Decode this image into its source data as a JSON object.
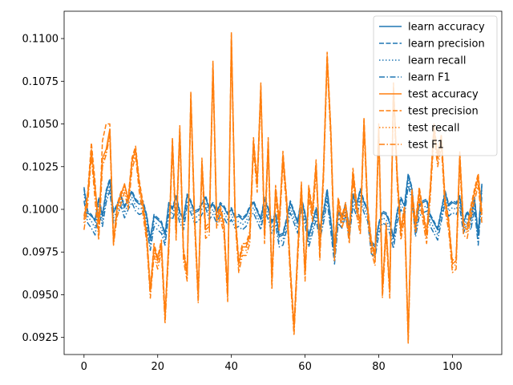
{
  "chart_data": {
    "type": "line",
    "title": "",
    "xlabel": "",
    "ylabel": "",
    "xlim": [
      -5.4,
      113.4
    ],
    "ylim": [
      0.0915,
      0.1116
    ],
    "x_ticks": [
      0,
      20,
      40,
      60,
      80,
      100
    ],
    "y_ticks": [
      0.0925,
      0.095,
      0.0975,
      0.1,
      0.1025,
      0.105,
      0.1075,
      0.11
    ],
    "y_tick_labels": [
      "0.0925",
      "0.0950",
      "0.0975",
      "0.1000",
      "0.1025",
      "0.1050",
      "0.1075",
      "0.1100"
    ],
    "legend_position": "top-right",
    "grid": false,
    "x": [
      0,
      1,
      2,
      3,
      4,
      5,
      6,
      7,
      8,
      9,
      10,
      11,
      12,
      13,
      14,
      15,
      16,
      17,
      18,
      19,
      20,
      21,
      22,
      23,
      24,
      25,
      26,
      27,
      28,
      29,
      30,
      31,
      32,
      33,
      34,
      35,
      36,
      37,
      38,
      39,
      40,
      41,
      42,
      43,
      44,
      45,
      46,
      47,
      48,
      49,
      50,
      51,
      52,
      53,
      54,
      55,
      56,
      57,
      58,
      59,
      60,
      61,
      62,
      63,
      64,
      65,
      66,
      67,
      68,
      69,
      70,
      71,
      72,
      73,
      74,
      75,
      76,
      77,
      78,
      79,
      80,
      81,
      82,
      83,
      84,
      85,
      86,
      87,
      88,
      89,
      90,
      91,
      92,
      93,
      94,
      95,
      96,
      97,
      98,
      99,
      100,
      101,
      102,
      103,
      104,
      105,
      106,
      107,
      108
    ],
    "series": [
      {
        "name": "learn accuracy",
        "color": "#1f77b4",
        "style": "solid",
        "values": [
          0.1012,
          0.0998,
          0.0996,
          0.0994,
          0.1006,
          0.0996,
          0.101,
          0.1017,
          0.0998,
          0.1002,
          0.1008,
          0.1001,
          0.1006,
          0.101,
          0.1005,
          0.1003,
          0.1004,
          0.0996,
          0.0982,
          0.0996,
          0.0994,
          0.0992,
          0.0985,
          0.1003,
          0.1,
          0.1007,
          0.0998,
          0.0994,
          0.1008,
          0.1004,
          0.0998,
          0.0999,
          0.1003,
          0.1007,
          0.1,
          0.1003,
          0.0998,
          0.1003,
          0.1001,
          0.0997,
          0.1,
          0.0995,
          0.0996,
          0.0994,
          0.0996,
          0.1001,
          0.1004,
          0.0999,
          0.0994,
          0.1006,
          0.1,
          0.0992,
          0.0997,
          0.0984,
          0.0985,
          0.0994,
          0.1004,
          0.0998,
          0.0992,
          0.1006,
          0.0997,
          0.0984,
          0.0992,
          0.1,
          0.0988,
          0.0998,
          0.1011,
          0.0993,
          0.0974,
          0.0998,
          0.0995,
          0.1002,
          0.0989,
          0.1008,
          0.1002,
          0.1011,
          0.1004,
          0.0999,
          0.098,
          0.0978,
          0.0991,
          0.0998,
          0.0997,
          0.0992,
          0.0983,
          0.0998,
          0.1006,
          0.1002,
          0.102,
          0.1012,
          0.099,
          0.1002,
          0.1004,
          0.1005,
          0.0996,
          0.0992,
          0.0988,
          0.0999,
          0.101,
          0.1002,
          0.1004,
          0.1003,
          0.1007,
          0.0992,
          0.0998,
          0.0994,
          0.1006,
          0.0985,
          0.1014
        ]
      },
      {
        "name": "learn precision",
        "color": "#1f77b4",
        "style": "dashed",
        "values": [
          0.1013,
          0.0999,
          0.0997,
          0.0993,
          0.1007,
          0.0997,
          0.1011,
          0.1018,
          0.0999,
          0.1003,
          0.1009,
          0.1002,
          0.1007,
          0.1011,
          0.1006,
          0.1004,
          0.1005,
          0.0997,
          0.0983,
          0.0997,
          0.0995,
          0.0993,
          0.0986,
          0.1004,
          0.1001,
          0.1008,
          0.0999,
          0.0995,
          0.1009,
          0.1005,
          0.0999,
          0.1,
          0.1004,
          0.1008,
          0.1001,
          0.1004,
          0.0999,
          0.1004,
          0.1002,
          0.0998,
          0.1001,
          0.0996,
          0.0997,
          0.0995,
          0.0997,
          0.1002,
          0.1005,
          0.1,
          0.0995,
          0.1007,
          0.1001,
          0.0993,
          0.0998,
          0.0985,
          0.0986,
          0.0995,
          0.1005,
          0.0999,
          0.0993,
          0.1007,
          0.0998,
          0.0985,
          0.0993,
          0.1001,
          0.0989,
          0.0999,
          0.1012,
          0.0994,
          0.0975,
          0.0999,
          0.0996,
          0.1003,
          0.099,
          0.1009,
          0.1003,
          0.1012,
          0.1005,
          0.1,
          0.0981,
          0.0979,
          0.0992,
          0.0999,
          0.0998,
          0.0993,
          0.0984,
          0.0999,
          0.1007,
          0.1003,
          0.1021,
          0.1013,
          0.0991,
          0.1003,
          0.1005,
          0.1006,
          0.0997,
          0.0993,
          0.0989,
          0.1,
          0.1011,
          0.1003,
          0.1005,
          0.1004,
          0.1008,
          0.0993,
          0.0999,
          0.0995,
          0.1007,
          0.0986,
          0.1015
        ]
      },
      {
        "name": "learn recall",
        "color": "#1f77b4",
        "style": "dotted",
        "values": [
          0.1009,
          0.0996,
          0.0993,
          0.0989,
          0.1003,
          0.0993,
          0.1007,
          0.1014,
          0.0995,
          0.0999,
          0.1005,
          0.0998,
          0.1003,
          0.1007,
          0.1002,
          0.1,
          0.1001,
          0.0993,
          0.0979,
          0.0993,
          0.0991,
          0.0989,
          0.0982,
          0.1,
          0.0997,
          0.1004,
          0.0995,
          0.0991,
          0.1005,
          0.1001,
          0.0995,
          0.0996,
          0.1,
          0.1004,
          0.0997,
          0.1,
          0.0995,
          0.1,
          0.0998,
          0.0994,
          0.0997,
          0.0992,
          0.0993,
          0.0991,
          0.0993,
          0.0998,
          0.1001,
          0.0996,
          0.0991,
          0.1003,
          0.0997,
          0.0989,
          0.0994,
          0.0981,
          0.0982,
          0.0991,
          0.1001,
          0.0995,
          0.0989,
          0.1003,
          0.0994,
          0.0981,
          0.0989,
          0.0997,
          0.0985,
          0.0995,
          0.1008,
          0.099,
          0.0971,
          0.0995,
          0.0992,
          0.0999,
          0.0986,
          0.1005,
          0.0999,
          0.1008,
          0.1001,
          0.0996,
          0.0977,
          0.0975,
          0.0988,
          0.0995,
          0.0994,
          0.0989,
          0.098,
          0.0995,
          0.1003,
          0.0999,
          0.1017,
          0.1009,
          0.0987,
          0.0999,
          0.1001,
          0.1002,
          0.0993,
          0.0989,
          0.0985,
          0.0996,
          0.1007,
          0.0999,
          0.1001,
          0.1,
          0.1004,
          0.0989,
          0.0995,
          0.0991,
          0.1003,
          0.0982,
          0.1011
        ]
      },
      {
        "name": "learn F1",
        "color": "#1f77b4",
        "style": "dashdot",
        "values": [
          0.1005,
          0.0992,
          0.0989,
          0.0985,
          0.0999,
          0.099,
          0.1004,
          0.1011,
          0.0992,
          0.0996,
          0.1002,
          0.0995,
          0.1,
          0.1004,
          0.0999,
          0.0997,
          0.0998,
          0.099,
          0.0976,
          0.099,
          0.0988,
          0.0986,
          0.0979,
          0.0997,
          0.0994,
          0.1001,
          0.0992,
          0.0988,
          0.1002,
          0.0998,
          0.0992,
          0.0993,
          0.0997,
          0.1001,
          0.0994,
          0.0997,
          0.0992,
          0.0997,
          0.0995,
          0.0991,
          0.0994,
          0.0989,
          0.099,
          0.0988,
          0.099,
          0.0995,
          0.0998,
          0.0993,
          0.0988,
          0.1,
          0.0994,
          0.0986,
          0.0991,
          0.0978,
          0.0979,
          0.0988,
          0.0998,
          0.0992,
          0.0986,
          0.1,
          0.0991,
          0.0978,
          0.0986,
          0.0994,
          0.0982,
          0.0992,
          0.1005,
          0.0987,
          0.0968,
          0.0992,
          0.0989,
          0.0996,
          0.0983,
          0.1002,
          0.0996,
          0.1005,
          0.0998,
          0.0993,
          0.0974,
          0.0972,
          0.0985,
          0.0992,
          0.0991,
          0.0986,
          0.0977,
          0.0992,
          0.1,
          0.0996,
          0.1014,
          0.1006,
          0.0984,
          0.0996,
          0.0998,
          0.0999,
          0.099,
          0.0986,
          0.0982,
          0.0993,
          0.1004,
          0.0996,
          0.0998,
          0.0997,
          0.1001,
          0.0986,
          0.0992,
          0.0988,
          0.1,
          0.0979,
          0.1008
        ]
      },
      {
        "name": "test accuracy",
        "color": "#ff7f0e",
        "style": "solid",
        "values": [
          0.0994,
          0.1008,
          0.1035,
          0.1012,
          0.0993,
          0.103,
          0.1035,
          0.1047,
          0.0982,
          0.1001,
          0.1008,
          0.1015,
          0.1005,
          0.1028,
          0.1035,
          0.1015,
          0.1002,
          0.0985,
          0.0952,
          0.0978,
          0.097,
          0.098,
          0.0937,
          0.098,
          0.104,
          0.0987,
          0.1047,
          0.0975,
          0.0962,
          0.1067,
          0.0996,
          0.0949,
          0.1028,
          0.0988,
          0.099,
          0.1085,
          0.0994,
          0.1,
          0.099,
          0.095,
          0.1102,
          0.0998,
          0.0968,
          0.0978,
          0.0978,
          0.0985,
          0.104,
          0.1015,
          0.1072,
          0.0985,
          0.104,
          0.0958,
          0.1012,
          0.0992,
          0.1032,
          0.1005,
          0.0965,
          0.093,
          0.0975,
          0.1014,
          0.0962,
          0.1012,
          0.0998,
          0.1027,
          0.0975,
          0.1022,
          0.109,
          0.1045,
          0.0975,
          0.1005,
          0.0994,
          0.1002,
          0.0985,
          0.1022,
          0.1002,
          0.099,
          0.1052,
          0.1,
          0.098,
          0.0972,
          0.1048,
          0.0952,
          0.099,
          0.0952,
          0.1072,
          0.102,
          0.0987,
          0.1,
          0.0925,
          0.101,
          0.0991,
          0.1011,
          0.0998,
          0.0985,
          0.1012,
          0.1048,
          0.103,
          0.1042,
          0.1005,
          0.0992,
          0.0968,
          0.097,
          0.1032,
          0.099,
          0.0988,
          0.1,
          0.101,
          0.1019,
          0.0997
        ]
      },
      {
        "name": "test precision",
        "color": "#ff7f0e",
        "style": "dashed",
        "values": [
          0.0996,
          0.101,
          0.1039,
          0.1016,
          0.0985,
          0.104,
          0.105,
          0.105,
          0.098,
          0.1003,
          0.101,
          0.1014,
          0.1007,
          0.103,
          0.1037,
          0.1017,
          0.1004,
          0.0987,
          0.0954,
          0.098,
          0.0972,
          0.0982,
          0.0939,
          0.0982,
          0.1042,
          0.0989,
          0.1049,
          0.0977,
          0.0964,
          0.1069,
          0.0998,
          0.0951,
          0.103,
          0.099,
          0.0992,
          0.1087,
          0.0996,
          0.1002,
          0.0992,
          0.0952,
          0.1104,
          0.1,
          0.097,
          0.098,
          0.098,
          0.0987,
          0.1042,
          0.1017,
          0.1074,
          0.0987,
          0.1042,
          0.096,
          0.1014,
          0.0994,
          0.1034,
          0.1007,
          0.0967,
          0.0932,
          0.0977,
          0.1016,
          0.0964,
          0.1014,
          0.1,
          0.1029,
          0.0977,
          0.1024,
          0.1092,
          0.1047,
          0.0977,
          0.1007,
          0.0996,
          0.1004,
          0.0987,
          0.1024,
          0.1004,
          0.0992,
          0.1054,
          0.1002,
          0.0982,
          0.0974,
          0.105,
          0.0954,
          0.0992,
          0.0954,
          0.1074,
          0.1022,
          0.0989,
          0.1002,
          0.0927,
          0.1012,
          0.0993,
          0.1013,
          0.1,
          0.0987,
          0.1014,
          0.105,
          0.1032,
          0.1044,
          0.1007,
          0.0994,
          0.097,
          0.0972,
          0.1034,
          0.0992,
          0.099,
          0.1002,
          0.1012,
          0.1021,
          0.0999
        ]
      },
      {
        "name": "test recall",
        "color": "#ff7f0e",
        "style": "dotted",
        "values": [
          0.0992,
          0.1006,
          0.1033,
          0.101,
          0.0991,
          0.1028,
          0.1033,
          0.1045,
          0.098,
          0.0999,
          0.1006,
          0.1013,
          0.1003,
          0.1026,
          0.1033,
          0.1013,
          0.1,
          0.0983,
          0.095,
          0.0976,
          0.0968,
          0.0978,
          0.0935,
          0.0978,
          0.1038,
          0.0985,
          0.1045,
          0.0973,
          0.096,
          0.1065,
          0.0994,
          0.0947,
          0.1026,
          0.0986,
          0.0988,
          0.1083,
          0.0992,
          0.0998,
          0.0988,
          0.0948,
          0.11,
          0.0996,
          0.0966,
          0.0976,
          0.0976,
          0.0983,
          0.1038,
          0.1013,
          0.107,
          0.0983,
          0.1038,
          0.0956,
          0.101,
          0.099,
          0.103,
          0.1003,
          0.0963,
          0.0928,
          0.0973,
          0.1012,
          0.096,
          0.101,
          0.0996,
          0.1025,
          0.0973,
          0.102,
          0.1088,
          0.1043,
          0.0973,
          0.1003,
          0.0992,
          0.1,
          0.0983,
          0.102,
          0.1,
          0.0988,
          0.105,
          0.0998,
          0.0978,
          0.097,
          0.1046,
          0.095,
          0.0988,
          0.095,
          0.107,
          0.1018,
          0.0985,
          0.0998,
          0.0923,
          0.1008,
          0.0989,
          0.1009,
          0.0996,
          0.0983,
          0.101,
          0.1046,
          0.1028,
          0.104,
          0.1003,
          0.099,
          0.0966,
          0.0968,
          0.103,
          0.0988,
          0.0986,
          0.0998,
          0.1008,
          0.1017,
          0.0995
        ]
      },
      {
        "name": "test F1",
        "color": "#ff7f0e",
        "style": "dashdot",
        "values": [
          0.0988,
          0.1003,
          0.1031,
          0.1005,
          0.0982,
          0.1025,
          0.1032,
          0.1043,
          0.0979,
          0.0996,
          0.1003,
          0.101,
          0.1,
          0.1023,
          0.1031,
          0.101,
          0.0997,
          0.0981,
          0.0948,
          0.0973,
          0.0965,
          0.0975,
          0.0933,
          0.0975,
          0.1036,
          0.0982,
          0.1043,
          0.097,
          0.0958,
          0.1063,
          0.0991,
          0.0945,
          0.1023,
          0.0983,
          0.0985,
          0.1081,
          0.0989,
          0.0995,
          0.0985,
          0.0946,
          0.1098,
          0.0993,
          0.0963,
          0.0973,
          0.0973,
          0.098,
          0.1035,
          0.101,
          0.1068,
          0.098,
          0.1035,
          0.0953,
          0.1007,
          0.0987,
          0.1027,
          0.1,
          0.096,
          0.0926,
          0.097,
          0.1009,
          0.0958,
          0.1007,
          0.0993,
          0.1022,
          0.097,
          0.1017,
          0.1086,
          0.104,
          0.097,
          0.1,
          0.0989,
          0.0997,
          0.098,
          0.1017,
          0.0997,
          0.0985,
          0.1048,
          0.0995,
          0.0975,
          0.0967,
          0.1043,
          0.0948,
          0.0985,
          0.0948,
          0.1068,
          0.1015,
          0.0982,
          0.0995,
          0.0921,
          0.1005,
          0.0986,
          0.1006,
          0.0993,
          0.098,
          0.1007,
          0.1043,
          0.1025,
          0.1037,
          0.1,
          0.0987,
          0.0963,
          0.0965,
          0.1027,
          0.0985,
          0.0983,
          0.0995,
          0.1005,
          0.1014,
          0.0992
        ]
      }
    ]
  }
}
